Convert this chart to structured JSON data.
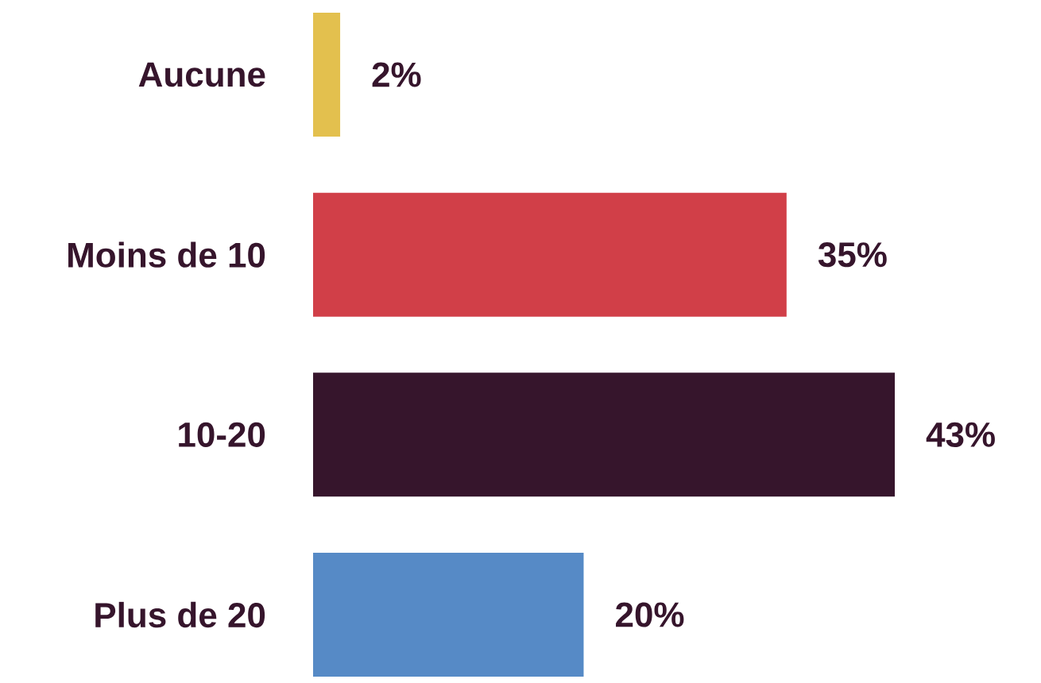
{
  "chart_data": {
    "type": "bar",
    "orientation": "horizontal",
    "categories": [
      "Aucune",
      "Moins de 10",
      "10-20",
      "Plus de 20"
    ],
    "values": [
      2,
      35,
      43,
      20
    ],
    "value_labels": [
      "2%",
      "35%",
      "43%",
      "20%"
    ],
    "colors": [
      "#e3c04e",
      "#d13f48",
      "#36152c",
      "#568ac6"
    ]
  }
}
